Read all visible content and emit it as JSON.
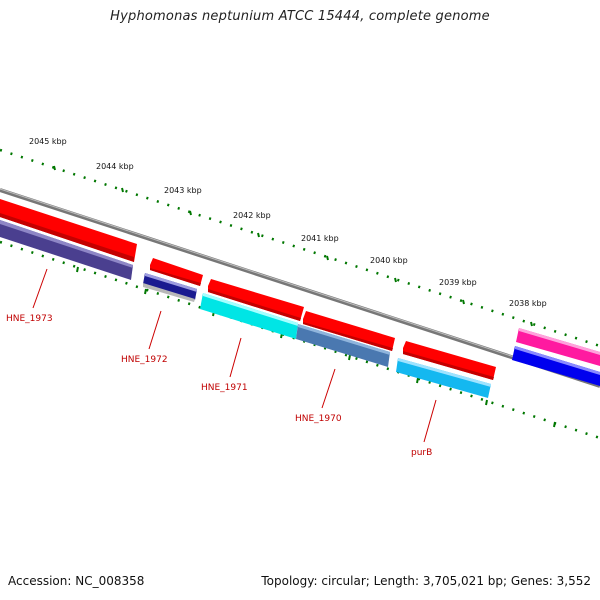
{
  "title": "Hyphomonas neptunium ATCC 15444, complete genome",
  "footer": {
    "accession": "Accession: NC_008358",
    "topology": "Topology: circular; Length: 3,705,021 bp; Genes: 3,552"
  },
  "ticks": [
    "2045 kbp",
    "2044 kbp",
    "2043 kbp",
    "2042 kbp",
    "2041 kbp",
    "2040 kbp",
    "2039 kbp",
    "2038 kbp"
  ],
  "genes": [
    {
      "label": "HNE_1973",
      "color": "#ff0000"
    },
    {
      "label": "HNE_1972",
      "color": "#ff0000"
    },
    {
      "label": "HNE_1971",
      "color": "#ff0000"
    },
    {
      "label": "HNE_1970",
      "color": "#ff0000"
    },
    {
      "label": "purB",
      "color": "#ff0000"
    }
  ],
  "colors": {
    "backbone": "#808080",
    "forward_cds": "#ff0000",
    "ticks": "#007700",
    "label": "#cc0000",
    "magenta_feature": "#ff1aa0",
    "blue_feature": "#0000ee",
    "slate_feature": "#4a3f8f",
    "navy_feature": "#1a1a90",
    "cyan_feature": "#00e5e5",
    "steel_feature": "#4a78b0",
    "sky_feature": "#14b8f0"
  }
}
